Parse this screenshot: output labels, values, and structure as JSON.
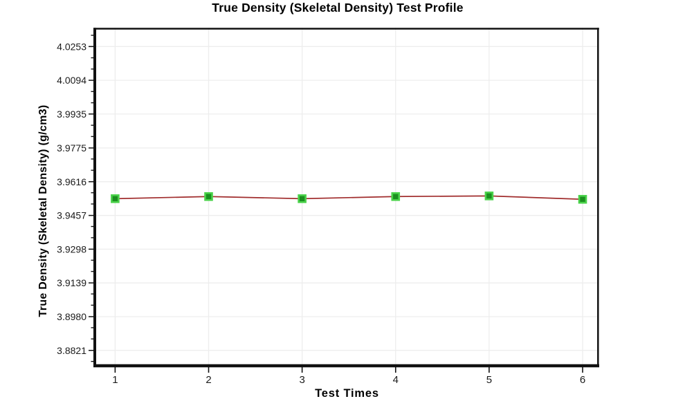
{
  "chart_data": {
    "type": "line",
    "title": "True Density (Skeletal Density) Test Profile",
    "xlabel": "Test Times",
    "ylabel": "True Density (Skeletal Density) (g/cm3)",
    "x": [
      1,
      2,
      3,
      4,
      5,
      6
    ],
    "series": [
      {
        "name": "True Density (Skeletal Density)",
        "values": [
          3.9536,
          3.9546,
          3.9536,
          3.9546,
          3.9549,
          3.9533
        ]
      }
    ],
    "xtick_labels": [
      "1",
      "2",
      "3",
      "4",
      "5",
      "6"
    ],
    "yticks": [
      4.0253,
      4.0094,
      3.9935,
      3.9775,
      3.9616,
      3.9457,
      3.9298,
      3.9139,
      3.898,
      3.8821
    ],
    "ytick_labels": [
      "4.0253",
      "4.0094",
      "3.9935",
      "3.9775",
      "3.9616",
      "3.9457",
      "3.9298",
      "3.9139",
      "3.8980",
      "3.8821"
    ],
    "xlim": [
      0.79,
      6.17
    ],
    "ylim": [
      3.8742,
      4.0342
    ],
    "grid": true,
    "legend_position": "none",
    "colors": {
      "line": "#a02c2c",
      "marker_fill": "#1b8f1f",
      "marker_edge": "#4ad24a",
      "grid": "#ededed",
      "axis": "#111111",
      "tick_text": "#1a1a1a"
    }
  }
}
